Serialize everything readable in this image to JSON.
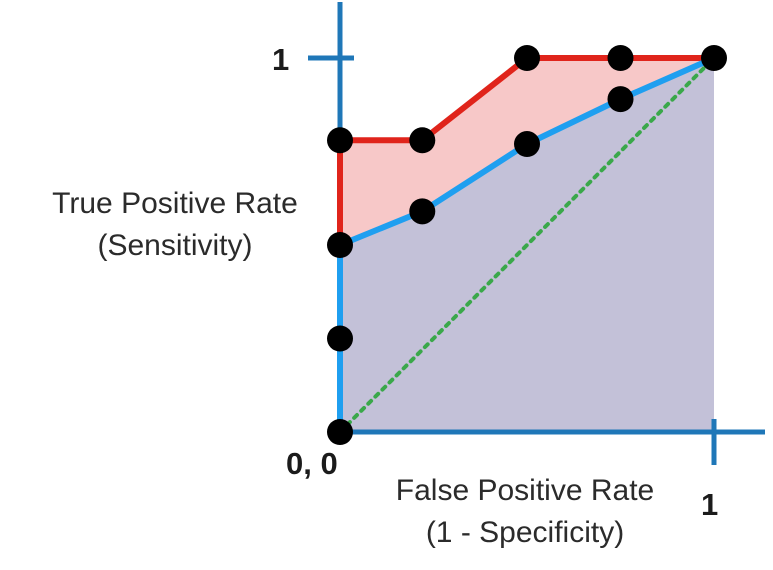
{
  "chart_data": {
    "type": "line",
    "title": "",
    "ylabel_lines": [
      "True Positive Rate",
      "(Sensitivity)"
    ],
    "xlabel_lines": [
      "False Positive Rate",
      "(1 - Specificity)"
    ],
    "tick_labels": {
      "y_top": "1",
      "origin": "0, 0",
      "x_right": "1"
    },
    "xlim": [
      0,
      1
    ],
    "ylim": [
      0,
      1
    ],
    "grid": false,
    "legend": "none",
    "colors": {
      "axis": "#1f77b8",
      "red_curve": "#e0241b",
      "blue_curve": "#1f9ff0",
      "red_fill": "#f7c8c8",
      "blue_fill": "#c3c1d8",
      "diagonal": "#3aa84a",
      "points": "#000000"
    },
    "series": [
      {
        "key": "red_curve",
        "x": [
          0,
          0,
          0.22,
          0.5,
          0.75,
          1
        ],
        "y": [
          0,
          0.78,
          0.78,
          1,
          1,
          1
        ]
      },
      {
        "key": "blue_curve",
        "x": [
          0,
          0,
          0.22,
          0.5,
          0.75,
          1
        ],
        "y": [
          0,
          0.5,
          0.59,
          0.77,
          0.89,
          1
        ]
      },
      {
        "key": "random_diagonal",
        "style": "dotted",
        "x": [
          0,
          1
        ],
        "y": [
          0,
          1
        ]
      }
    ],
    "points": [
      {
        "x": 0,
        "y": 0
      },
      {
        "x": 0,
        "y": 0.25
      },
      {
        "x": 0,
        "y": 0.5
      },
      {
        "x": 0,
        "y": 0.78
      },
      {
        "x": 0.22,
        "y": 0.78
      },
      {
        "x": 0.5,
        "y": 1
      },
      {
        "x": 0.75,
        "y": 1
      },
      {
        "x": 1,
        "y": 1
      },
      {
        "x": 0.22,
        "y": 0.59
      },
      {
        "x": 0.5,
        "y": 0.77
      },
      {
        "x": 0.75,
        "y": 0.89
      }
    ]
  }
}
